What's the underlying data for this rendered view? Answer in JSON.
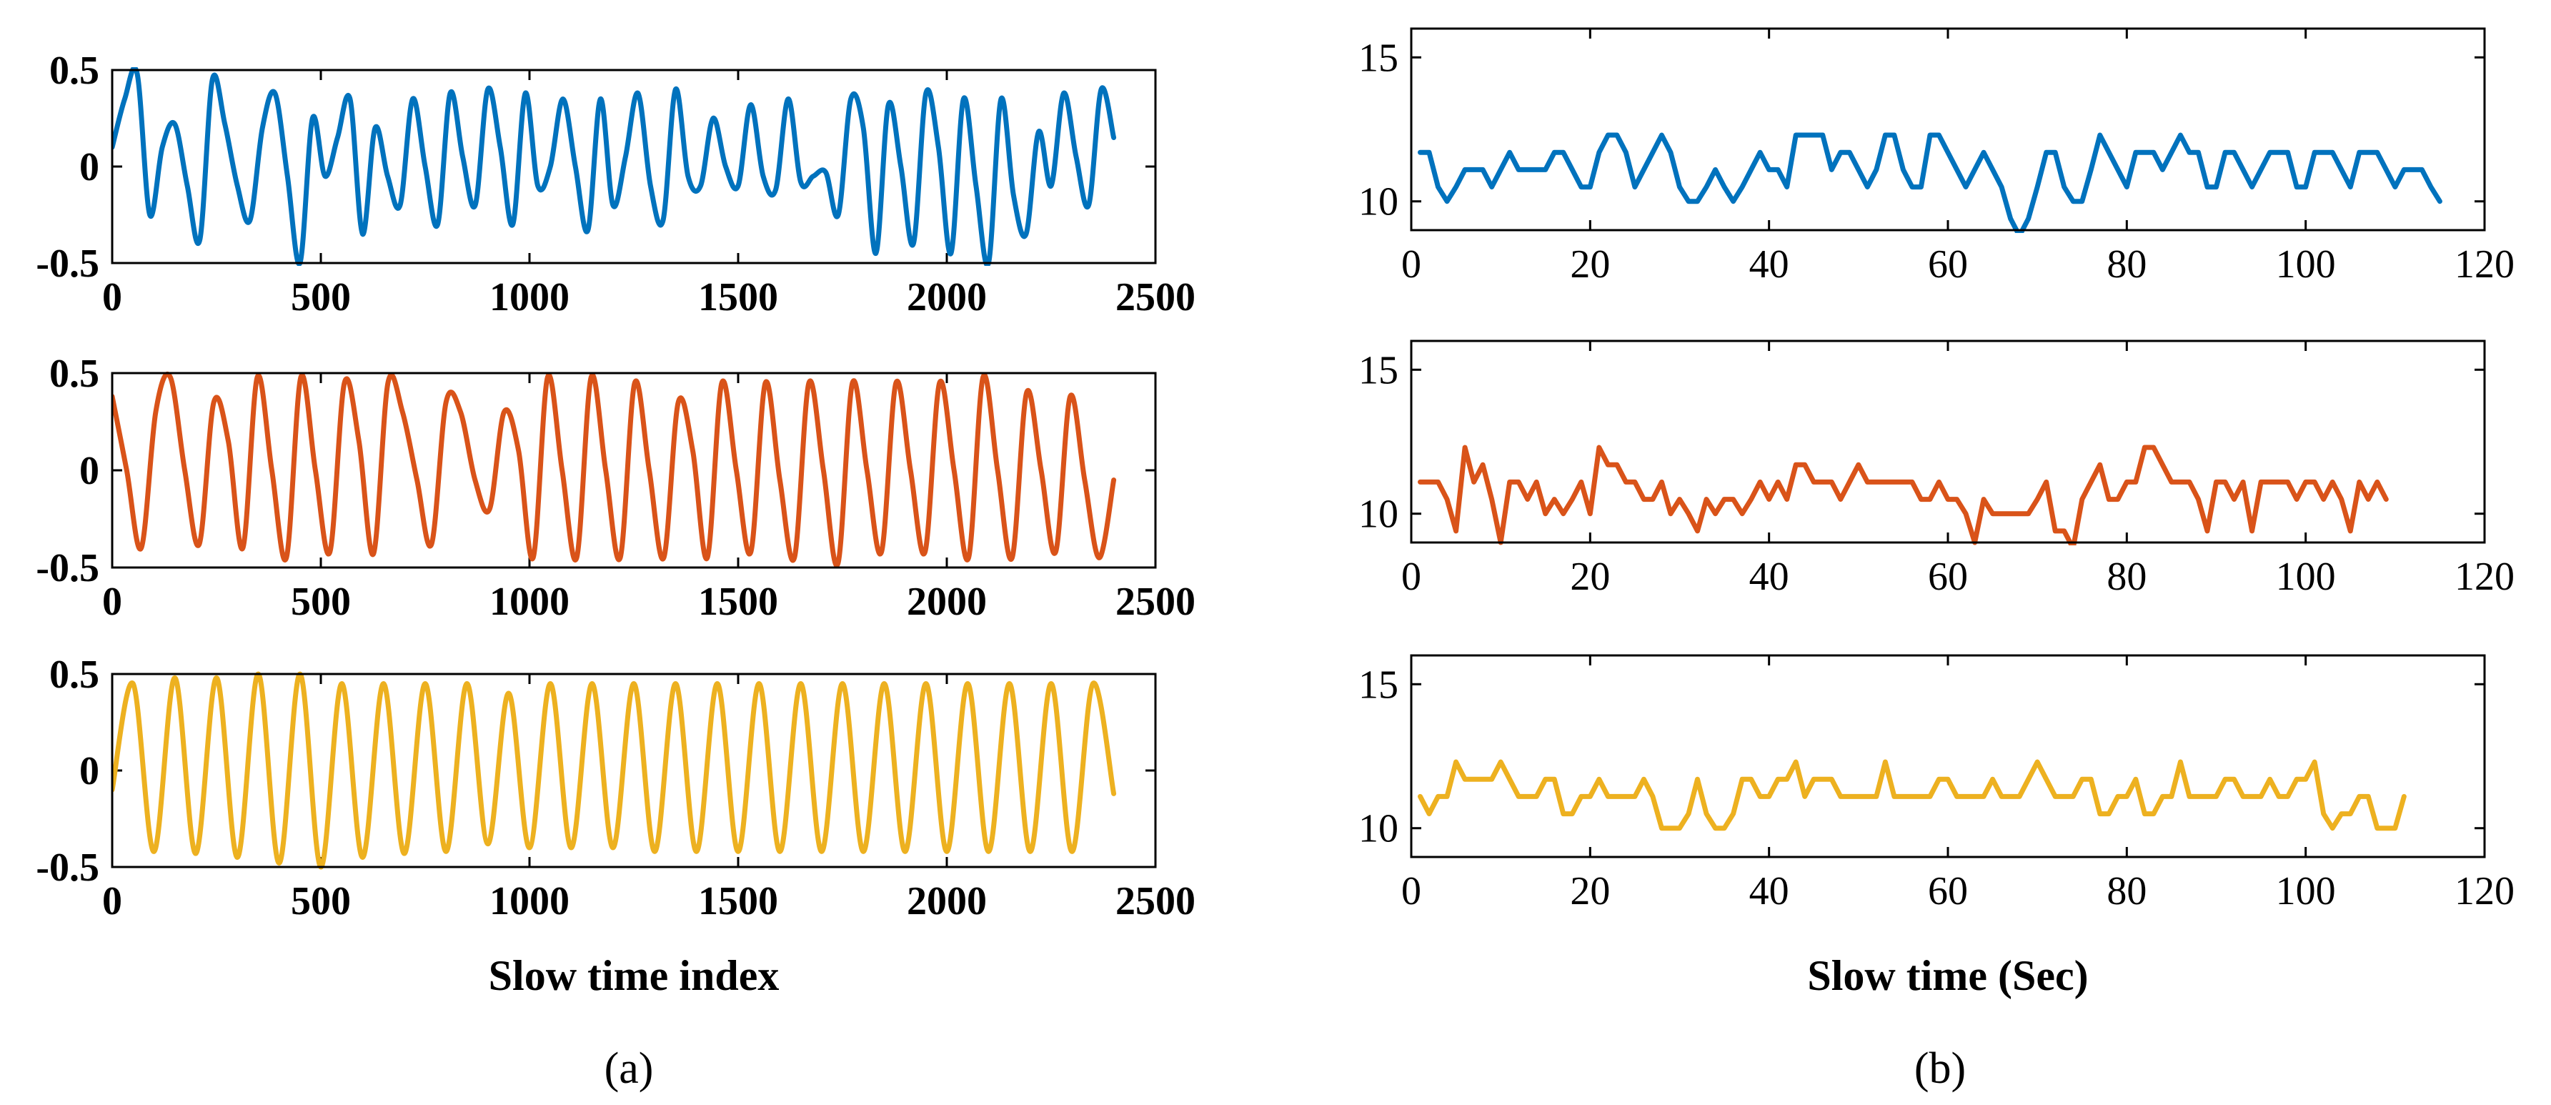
{
  "figure": {
    "panel_labels": [
      "(a)",
      "(b)"
    ]
  },
  "chart_data": [
    {
      "type": "line",
      "panel": "a",
      "subplot": 1,
      "color": "#0072BD",
      "xlabel": "",
      "xlim": [
        0,
        2500
      ],
      "ylim": [
        -0.5,
        0.5
      ],
      "xticks": [
        "0",
        "500",
        "1000",
        "1500",
        "2000",
        "2500"
      ],
      "yticks": [
        "0.5",
        "0",
        "-0.5"
      ],
      "x_end": 2400,
      "y": [
        0.1,
        0.35,
        0.48,
        -0.25,
        0.1,
        0.22,
        -0.1,
        -0.38,
        0.45,
        0.22,
        -0.1,
        -0.28,
        0.2,
        0.38,
        -0.05,
        -0.5,
        0.25,
        -0.05,
        0.15,
        0.35,
        -0.35,
        0.2,
        -0.05,
        -0.2,
        0.35,
        0.0,
        -0.3,
        0.38,
        0.05,
        -0.2,
        0.4,
        0.1,
        -0.3,
        0.38,
        -0.1,
        0.0,
        0.35,
        0.0,
        -0.33,
        0.35,
        -0.2,
        0.05,
        0.38,
        -0.1,
        -0.28,
        0.4,
        -0.05,
        -0.1,
        0.25,
        0.0,
        -0.1,
        0.32,
        -0.05,
        -0.12,
        0.35,
        -0.08,
        -0.05,
        -0.03,
        -0.25,
        0.35,
        0.2,
        -0.45,
        0.32,
        0.0,
        -0.4,
        0.38,
        0.1,
        -0.45,
        0.35,
        -0.1,
        -0.5,
        0.35,
        -0.15,
        -0.35,
        0.18,
        -0.1,
        0.38,
        0.05,
        -0.2,
        0.4,
        0.15
      ]
    },
    {
      "type": "line",
      "panel": "a",
      "subplot": 2,
      "color": "#D95319",
      "xlabel": "",
      "xlim": [
        0,
        2500
      ],
      "ylim": [
        -0.5,
        0.5
      ],
      "xticks": [
        "0",
        "500",
        "1000",
        "1500",
        "2000",
        "2500"
      ],
      "yticks": [
        "0.5",
        "0",
        "-0.5"
      ],
      "x_end": 2400,
      "y": [
        0.38,
        0.0,
        -0.4,
        0.3,
        0.48,
        0.0,
        -0.38,
        0.35,
        0.15,
        -0.4,
        0.48,
        0.0,
        -0.45,
        0.48,
        0.0,
        -0.42,
        0.45,
        0.15,
        -0.43,
        0.45,
        0.3,
        -0.05,
        -0.38,
        0.35,
        0.3,
        -0.05,
        -0.2,
        0.3,
        0.1,
        -0.45,
        0.48,
        0.0,
        -0.45,
        0.48,
        0.0,
        -0.45,
        0.45,
        0.0,
        -0.45,
        0.35,
        0.1,
        -0.45,
        0.45,
        0.0,
        -0.42,
        0.45,
        -0.05,
        -0.45,
        0.45,
        0.0,
        -0.48,
        0.45,
        0.0,
        -0.42,
        0.45,
        0.0,
        -0.42,
        0.45,
        0.0,
        -0.45,
        0.48,
        0.0,
        -0.45,
        0.4,
        0.0,
        -0.42,
        0.38,
        -0.05,
        -0.45,
        -0.05
      ]
    },
    {
      "type": "line",
      "panel": "a",
      "subplot": 3,
      "color": "#EDB120",
      "xlabel": "Slow time index",
      "xlim": [
        0,
        2500
      ],
      "ylim": [
        -0.5,
        0.5
      ],
      "xticks": [
        "0",
        "500",
        "1000",
        "1500",
        "2000",
        "2500"
      ],
      "yticks": [
        "0.5",
        "0",
        "-0.5"
      ],
      "x_end": 2400,
      "y": [
        -0.1,
        0.45,
        -0.42,
        0.48,
        -0.43,
        0.48,
        -0.45,
        0.5,
        -0.48,
        0.5,
        -0.5,
        0.45,
        -0.45,
        0.45,
        -0.43,
        0.45,
        -0.42,
        0.45,
        -0.38,
        0.4,
        -0.4,
        0.45,
        -0.4,
        0.45,
        -0.4,
        0.45,
        -0.42,
        0.45,
        -0.42,
        0.45,
        -0.42,
        0.45,
        -0.42,
        0.45,
        -0.42,
        0.45,
        -0.42,
        0.45,
        -0.42,
        0.45,
        -0.42,
        0.45,
        -0.42,
        0.45,
        -0.42,
        0.45,
        -0.42,
        0.45,
        -0.12
      ]
    },
    {
      "type": "line",
      "panel": "b",
      "subplot": 1,
      "color": "#0072BD",
      "xlabel": "",
      "xlim": [
        0,
        120
      ],
      "ylim": [
        9,
        16
      ],
      "xticks": [
        "0",
        "20",
        "40",
        "60",
        "80",
        "100",
        "120"
      ],
      "yticks": [
        "15",
        "10"
      ],
      "x_start": 1,
      "y": [
        11.7,
        11.7,
        10.5,
        10.0,
        10.5,
        11.1,
        11.1,
        11.1,
        10.5,
        11.1,
        11.7,
        11.1,
        11.1,
        11.1,
        11.1,
        11.7,
        11.7,
        11.1,
        10.5,
        10.5,
        11.7,
        12.3,
        12.3,
        11.7,
        10.5,
        11.1,
        11.7,
        12.3,
        11.7,
        10.5,
        10.0,
        10.0,
        10.5,
        11.1,
        10.5,
        10.0,
        10.5,
        11.1,
        11.7,
        11.1,
        11.1,
        10.5,
        12.3,
        12.3,
        12.3,
        12.3,
        11.1,
        11.7,
        11.7,
        11.1,
        10.5,
        11.1,
        12.3,
        12.3,
        11.1,
        10.5,
        10.5,
        12.3,
        12.3,
        11.7,
        11.1,
        10.5,
        11.1,
        11.7,
        11.1,
        10.5,
        9.4,
        8.8,
        9.4,
        10.5,
        11.7,
        11.7,
        10.5,
        10.0,
        10.0,
        11.1,
        12.3,
        11.7,
        11.1,
        10.5,
        11.7,
        11.7,
        11.7,
        11.1,
        11.7,
        12.3,
        11.7,
        11.7,
        10.5,
        10.5,
        11.7,
        11.7,
        11.1,
        10.5,
        11.1,
        11.7,
        11.7,
        11.7,
        10.5,
        10.5,
        11.7,
        11.7,
        11.7,
        11.1,
        10.5,
        11.7,
        11.7,
        11.7,
        11.1,
        10.5,
        11.1,
        11.1,
        11.1,
        10.5,
        10.0
      ]
    },
    {
      "type": "line",
      "panel": "b",
      "subplot": 2,
      "color": "#D95319",
      "xlabel": "",
      "xlim": [
        0,
        120
      ],
      "ylim": [
        9,
        16
      ],
      "xticks": [
        "0",
        "20",
        "40",
        "60",
        "80",
        "100",
        "120"
      ],
      "yticks": [
        "15",
        "10"
      ],
      "x_start": 1,
      "y": [
        11.1,
        11.1,
        11.1,
        10.5,
        9.4,
        12.3,
        11.1,
        11.7,
        10.5,
        9.0,
        11.1,
        11.1,
        10.5,
        11.1,
        10.0,
        10.5,
        10.0,
        10.5,
        11.1,
        10.0,
        12.3,
        11.7,
        11.7,
        11.1,
        11.1,
        10.5,
        10.5,
        11.1,
        10.0,
        10.5,
        10.0,
        9.4,
        10.5,
        10.0,
        10.5,
        10.5,
        10.0,
        10.5,
        11.1,
        10.5,
        11.1,
        10.5,
        11.7,
        11.7,
        11.1,
        11.1,
        11.1,
        10.5,
        11.1,
        11.7,
        11.1,
        11.1,
        11.1,
        11.1,
        11.1,
        11.1,
        10.5,
        10.5,
        11.1,
        10.5,
        10.5,
        10.0,
        9.0,
        10.5,
        10.0,
        10.0,
        10.0,
        10.0,
        10.0,
        10.5,
        11.1,
        9.4,
        9.4,
        8.8,
        10.5,
        11.1,
        11.7,
        10.5,
        10.5,
        11.1,
        11.1,
        12.3,
        12.3,
        11.7,
        11.1,
        11.1,
        11.1,
        10.5,
        9.4,
        11.1,
        11.1,
        10.5,
        11.1,
        9.4,
        11.1,
        11.1,
        11.1,
        11.1,
        10.5,
        11.1,
        11.1,
        10.5,
        11.1,
        10.5,
        9.4,
        11.1,
        10.5,
        11.1,
        10.5
      ]
    },
    {
      "type": "line",
      "panel": "b",
      "subplot": 3,
      "color": "#EDB120",
      "xlabel": "Slow time (Sec)",
      "xlim": [
        0,
        120
      ],
      "ylim": [
        9,
        16
      ],
      "xticks": [
        "0",
        "20",
        "40",
        "60",
        "80",
        "100",
        "120"
      ],
      "yticks": [
        "15",
        "10"
      ],
      "x_start": 1,
      "y": [
        11.1,
        10.5,
        11.1,
        11.1,
        12.3,
        11.7,
        11.7,
        11.7,
        11.7,
        12.3,
        11.7,
        11.1,
        11.1,
        11.1,
        11.7,
        11.7,
        10.5,
        10.5,
        11.1,
        11.1,
        11.7,
        11.1,
        11.1,
        11.1,
        11.1,
        11.7,
        11.1,
        10.0,
        10.0,
        10.0,
        10.5,
        11.7,
        10.5,
        10.0,
        10.0,
        10.5,
        11.7,
        11.7,
        11.1,
        11.1,
        11.7,
        11.7,
        12.3,
        11.1,
        11.7,
        11.7,
        11.7,
        11.1,
        11.1,
        11.1,
        11.1,
        11.1,
        12.3,
        11.1,
        11.1,
        11.1,
        11.1,
        11.1,
        11.7,
        11.7,
        11.1,
        11.1,
        11.1,
        11.1,
        11.7,
        11.1,
        11.1,
        11.1,
        11.7,
        12.3,
        11.7,
        11.1,
        11.1,
        11.1,
        11.7,
        11.7,
        10.5,
        10.5,
        11.1,
        11.1,
        11.7,
        10.5,
        10.5,
        11.1,
        11.1,
        12.3,
        11.1,
        11.1,
        11.1,
        11.1,
        11.7,
        11.7,
        11.1,
        11.1,
        11.1,
        11.7,
        11.1,
        11.1,
        11.7,
        11.7,
        12.3,
        10.5,
        10.0,
        10.5,
        10.5,
        11.1,
        11.1,
        10.0,
        10.0,
        10.0,
        11.1
      ]
    }
  ]
}
